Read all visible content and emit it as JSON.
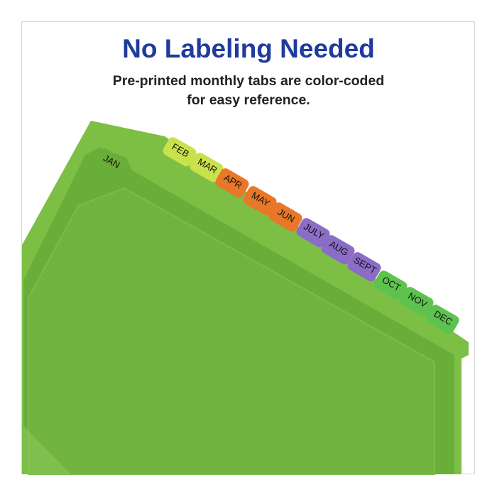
{
  "heading": "No Labeling Needed",
  "subheading_line1": "Pre-printed monthly tabs are color-coded",
  "subheading_line2": "for easy reference.",
  "colors": {
    "title": "#1f3c9c",
    "folder": "#6aae3a",
    "yellow_green": "#c9e24c",
    "orange": "#e8772a",
    "purple": "#8b6cc6",
    "green": "#5dc24e"
  },
  "tabs": [
    {
      "label": "JAN",
      "color": "#6aae3a"
    },
    {
      "label": "FEB",
      "color": "#c9e24c"
    },
    {
      "label": "MAR",
      "color": "#c9e24c"
    },
    {
      "label": "APR",
      "color": "#e8772a"
    },
    {
      "label": "MAY",
      "color": "#e8772a"
    },
    {
      "label": "JUN",
      "color": "#e8772a"
    },
    {
      "label": "JULY",
      "color": "#8b6cc6"
    },
    {
      "label": "AUG",
      "color": "#8b6cc6"
    },
    {
      "label": "SEPT",
      "color": "#8b6cc6"
    },
    {
      "label": "OCT",
      "color": "#5dc24e"
    },
    {
      "label": "NOV",
      "color": "#5dc24e"
    },
    {
      "label": "DEC",
      "color": "#5dc24e"
    }
  ]
}
